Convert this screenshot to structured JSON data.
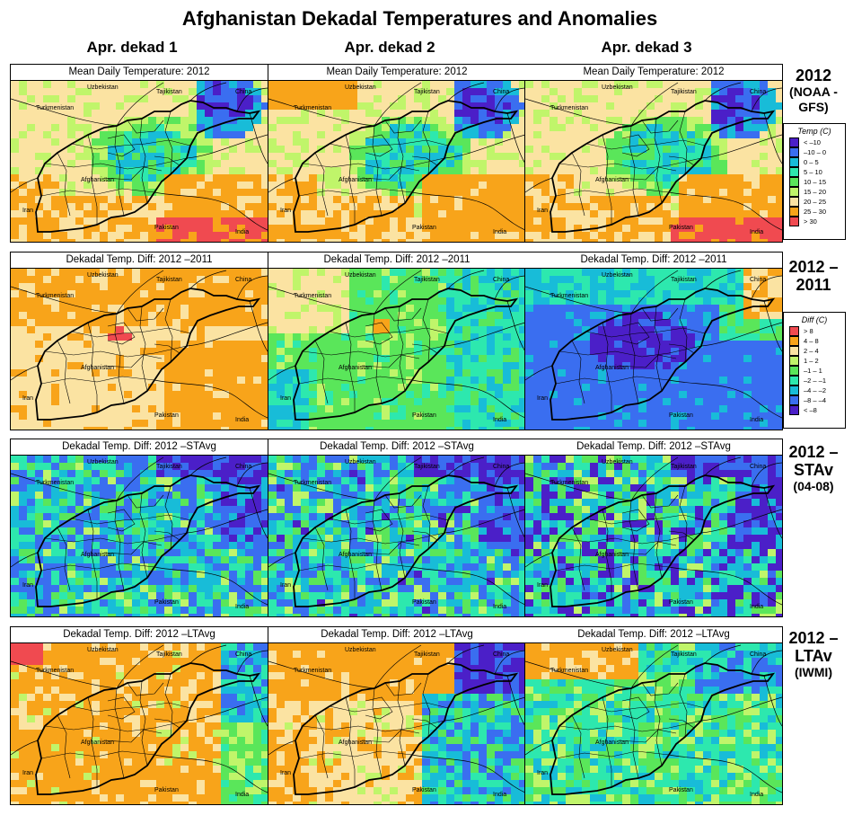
{
  "title": "Afghanistan Dekadal Temperatures and Anomalies",
  "columns": [
    "Apr. dekad 1",
    "Apr. dekad 2",
    "Apr. dekad 3"
  ],
  "rows": [
    {
      "head_main": "2012",
      "head_sub": "(NOAA -GFS)",
      "panel_titles": [
        "Mean Daily Temperature: 2012",
        "Mean Daily Temperature: 2012",
        "Mean Daily Temperature: 2012"
      ],
      "palette": "temp",
      "regimes": [
        "r1c1",
        "r1c2",
        "r1c3"
      ]
    },
    {
      "head_main": "2012 –2011",
      "head_sub": "",
      "panel_titles": [
        "Dekadal Temp. Diff: 2012 –2011",
        "Dekadal Temp. Diff: 2012 –2011",
        "Dekadal Temp. Diff: 2012 –2011"
      ],
      "palette": "diff",
      "regimes": [
        "r2c1",
        "r2c2",
        "r2c3"
      ]
    },
    {
      "head_main": "2012 –STAv",
      "head_sub": "(04-08)",
      "panel_titles": [
        "Dekadal Temp. Diff: 2012 –STAvg",
        "Dekadal Temp. Diff: 2012 –STAvg",
        "Dekadal Temp. Diff: 2012 –STAvg"
      ],
      "palette": "diff",
      "regimes": [
        "r3c1",
        "r3c2",
        "r3c3"
      ]
    },
    {
      "head_main": "2012 –LTAv",
      "head_sub": "(IWMI)",
      "panel_titles": [
        "Dekadal Temp. Diff: 2012 –LTAvg",
        "Dekadal Temp. Diff: 2012 –LTAvg",
        "Dekadal Temp. Diff: 2012 –LTAvg"
      ],
      "palette": "diff",
      "regimes": [
        "r4c1",
        "r4c2",
        "r4c3"
      ]
    }
  ],
  "map_labels": {
    "uzbekistan": "Uzbekistan",
    "tajikistan": "Tajikistan",
    "china": "China",
    "turkmenistan": "Turkmenistan",
    "afghanistan": "Afghanistan",
    "iran": "Iran",
    "pakistan": "Pakistan",
    "india": "India"
  },
  "legends": {
    "temp": {
      "title": "Temp (C)",
      "items": [
        {
          "label": "< –10",
          "color": "#4b1fc8"
        },
        {
          "label": "–10 – 0",
          "color": "#3a6ef0"
        },
        {
          "label": "0 – 5",
          "color": "#18bcd8"
        },
        {
          "label": "5 – 10",
          "color": "#2de8ae"
        },
        {
          "label": "10 – 15",
          "color": "#5ae65a"
        },
        {
          "label": "15 – 20",
          "color": "#c0f56a"
        },
        {
          "label": "20 – 25",
          "color": "#fbe3a2"
        },
        {
          "label": "25 – 30",
          "color": "#f8a41a"
        },
        {
          "label": "> 30",
          "color": "#f04a50"
        }
      ]
    },
    "diff": {
      "title": "Diff (C)",
      "items": [
        {
          "label": "> 8",
          "color": "#f04a50"
        },
        {
          "label": "4 – 8",
          "color": "#f8a41a"
        },
        {
          "label": "2 – 4",
          "color": "#fbe3a2"
        },
        {
          "label": "1 – 2",
          "color": "#c0f56a"
        },
        {
          "label": "–1 – 1",
          "color": "#5ae65a"
        },
        {
          "label": "–2 – –1",
          "color": "#2de8ae"
        },
        {
          "label": "–4 – –2",
          "color": "#18bcd8"
        },
        {
          "label": "–8 – –4",
          "color": "#3a6ef0"
        },
        {
          "label": "< –8",
          "color": "#4b1fc8"
        }
      ]
    }
  }
}
